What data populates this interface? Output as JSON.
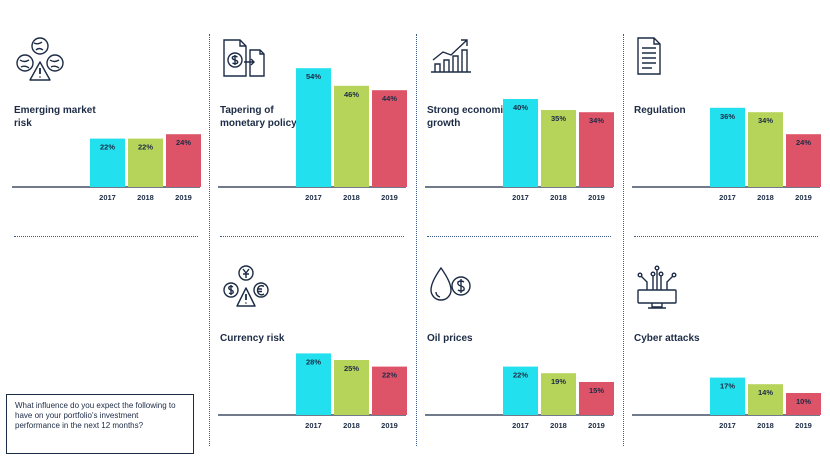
{
  "question": "What influence do you expect the following to have on your portfolio's investment performance in the next 12 months?",
  "colors": {
    "2017": "#22e0ee",
    "2018": "#b6d35a",
    "2019": "#dd5468",
    "axis": "#1c2b45"
  },
  "chart_data": [
    {
      "type": "bar",
      "title": "Emerging market risk",
      "icon": "globes-warning-icon",
      "categories": [
        "2017",
        "2018",
        "2019"
      ],
      "values": [
        22,
        22,
        24
      ],
      "labels": [
        "22%",
        "22%",
        "24%"
      ]
    },
    {
      "type": "bar",
      "title": "Tapering of monetary policy",
      "icon": "dollar-document-icon",
      "categories": [
        "2017",
        "2018",
        "2019"
      ],
      "values": [
        54,
        46,
        44
      ],
      "labels": [
        "54%",
        "46%",
        "44%"
      ]
    },
    {
      "type": "bar",
      "title": "Strong economic growth",
      "icon": "rising-bars-icon",
      "categories": [
        "2017",
        "2018",
        "2019"
      ],
      "values": [
        40,
        35,
        34
      ],
      "labels": [
        "40%",
        "35%",
        "34%"
      ]
    },
    {
      "type": "bar",
      "title": "Regulation",
      "icon": "document-icon",
      "categories": [
        "2017",
        "2018",
        "2019"
      ],
      "values": [
        36,
        34,
        24
      ],
      "labels": [
        "36%",
        "34%",
        "24%"
      ]
    },
    {
      "type": "bar",
      "title": "Currency risk",
      "icon": "currency-warning-icon",
      "categories": [
        "2017",
        "2018",
        "2019"
      ],
      "values": [
        28,
        25,
        22
      ],
      "labels": [
        "28%",
        "25%",
        "22%"
      ]
    },
    {
      "type": "bar",
      "title": "Oil prices",
      "icon": "oil-drop-dollar-icon",
      "categories": [
        "2017",
        "2018",
        "2019"
      ],
      "values": [
        22,
        19,
        15
      ],
      "labels": [
        "22%",
        "19%",
        "15%"
      ]
    },
    {
      "type": "bar",
      "title": "Cyber attacks",
      "icon": "circuit-monitor-icon",
      "categories": [
        "2017",
        "2018",
        "2019"
      ],
      "values": [
        17,
        14,
        10
      ],
      "labels": [
        "17%",
        "14%",
        "10%"
      ]
    }
  ]
}
